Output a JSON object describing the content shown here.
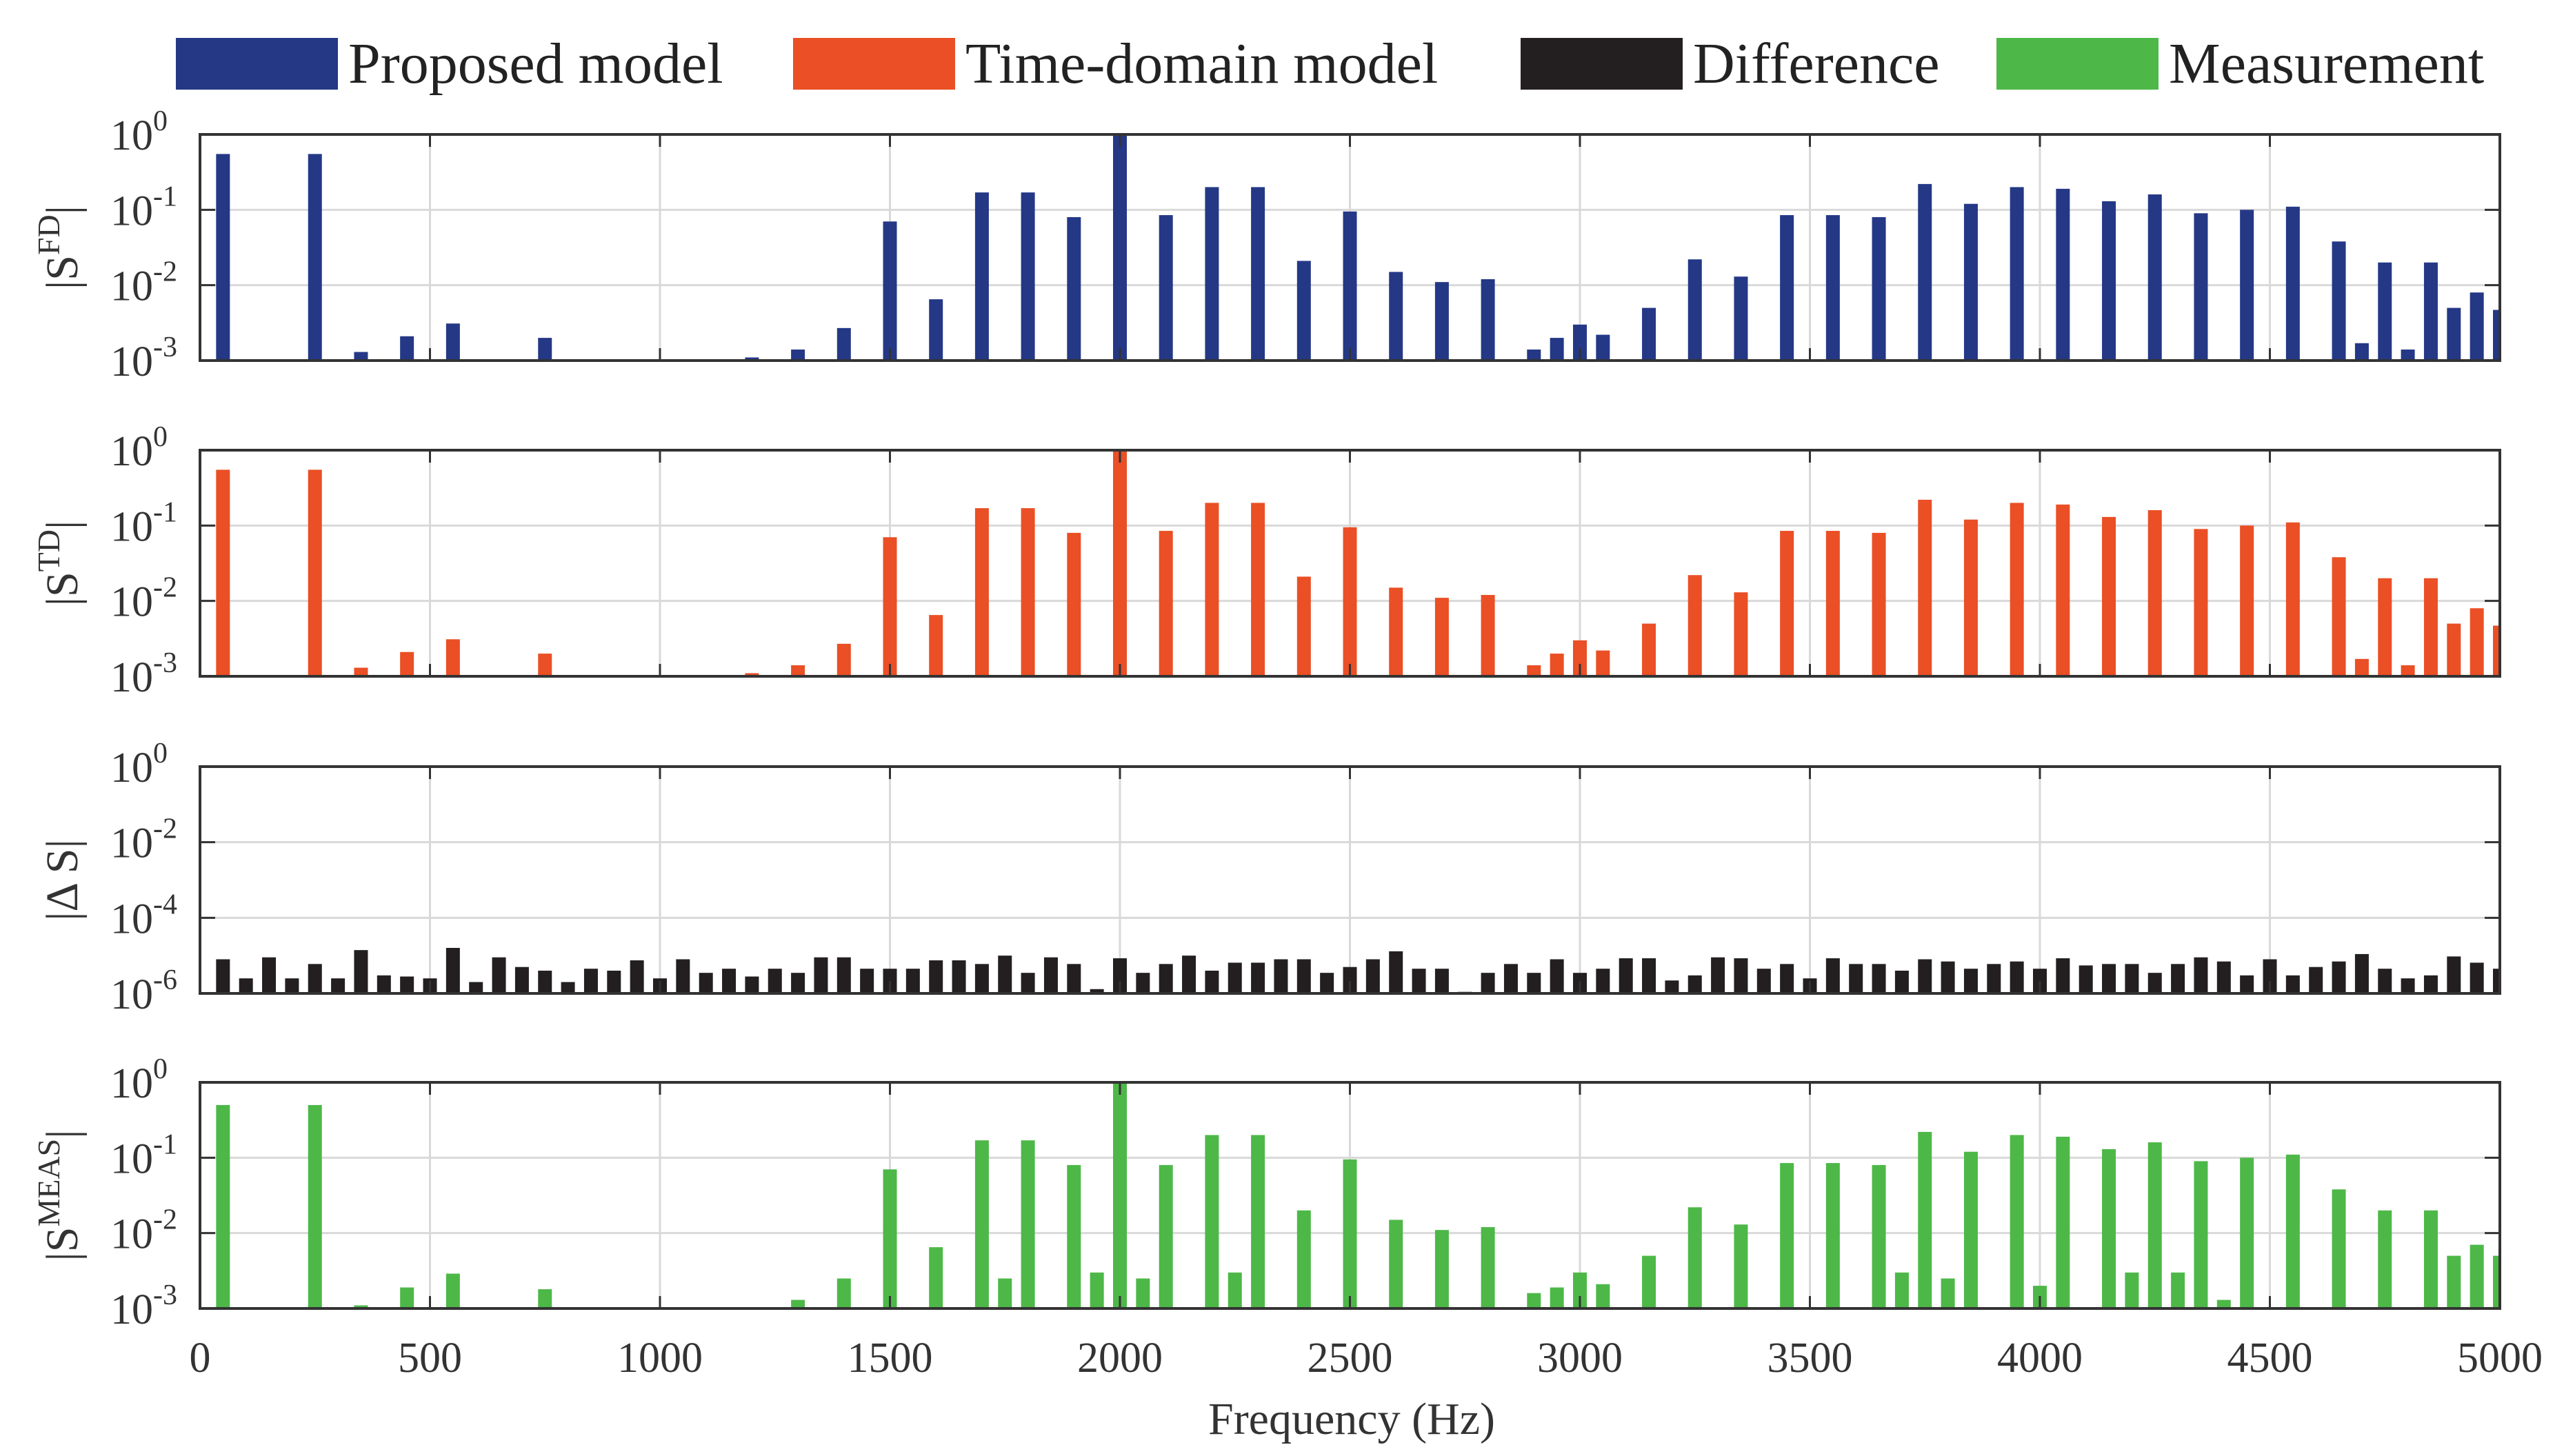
{
  "legend": [
    {
      "label": "Proposed model",
      "color": "#243886"
    },
    {
      "label": "Time-domain model",
      "color": "#EA4F25"
    },
    {
      "label": "Difference",
      "color": "#231F20"
    },
    {
      "label": "Measurement",
      "color": "#4DB848"
    }
  ],
  "xaxis": {
    "label": "Frequency (Hz)",
    "range": [
      0,
      5000
    ],
    "ticks": [
      0,
      500,
      1000,
      1500,
      2000,
      2500,
      3000,
      3500,
      4000,
      4500,
      5000
    ],
    "tick_labels": [
      "0",
      "500",
      "1000",
      "1500",
      "2000",
      "2500",
      "3000",
      "3500",
      "4000",
      "4500",
      "5000"
    ]
  },
  "chart_data": [
    {
      "type": "bar",
      "name": "Proposed model",
      "ylabel_base": "|S",
      "ylabel_sup": "FD",
      "ylabel_end": "|",
      "yscale": "log",
      "ylim_exp": [
        -3,
        0
      ],
      "yticks": [
        {
          "base": "10",
          "exp": "0"
        },
        {
          "base": "10",
          "exp": "-1"
        },
        {
          "base": "10",
          "exp": "-2"
        },
        {
          "base": "10",
          "exp": "-3"
        }
      ],
      "color": "#243886",
      "points": [
        [
          50,
          0.55
        ],
        [
          250,
          0.55
        ],
        [
          350,
          0.0013
        ],
        [
          450,
          0.0021
        ],
        [
          550,
          0.0031
        ],
        [
          750,
          0.002
        ],
        [
          1200,
          0.0011
        ],
        [
          1300,
          0.0014
        ],
        [
          1400,
          0.0027
        ],
        [
          1500,
          0.07
        ],
        [
          1600,
          0.0065
        ],
        [
          1700,
          0.17
        ],
        [
          1800,
          0.17
        ],
        [
          1900,
          0.08
        ],
        [
          2000,
          1.0
        ],
        [
          2100,
          0.085
        ],
        [
          2200,
          0.2
        ],
        [
          2300,
          0.2
        ],
        [
          2400,
          0.021
        ],
        [
          2500,
          0.095
        ],
        [
          2600,
          0.015
        ],
        [
          2700,
          0.011
        ],
        [
          2800,
          0.012
        ],
        [
          2900,
          0.0014
        ],
        [
          2950,
          0.002
        ],
        [
          3000,
          0.003
        ],
        [
          3050,
          0.0022
        ],
        [
          3150,
          0.005
        ],
        [
          3250,
          0.022
        ],
        [
          3350,
          0.013
        ],
        [
          3450,
          0.085
        ],
        [
          3550,
          0.085
        ],
        [
          3650,
          0.08
        ],
        [
          3750,
          0.22
        ],
        [
          3850,
          0.12
        ],
        [
          3950,
          0.2
        ],
        [
          4050,
          0.19
        ],
        [
          4150,
          0.13
        ],
        [
          4250,
          0.16
        ],
        [
          4350,
          0.09
        ],
        [
          4450,
          0.1
        ],
        [
          4550,
          0.11
        ],
        [
          4650,
          0.038
        ],
        [
          4700,
          0.0017
        ],
        [
          4750,
          0.02
        ],
        [
          4800,
          0.0014
        ],
        [
          4850,
          0.02
        ],
        [
          4900,
          0.005
        ],
        [
          4950,
          0.008
        ],
        [
          5000,
          0.0047
        ]
      ]
    },
    {
      "type": "bar",
      "name": "Time-domain model",
      "ylabel_base": "|S",
      "ylabel_sup": "TD",
      "ylabel_end": "|",
      "yscale": "log",
      "ylim_exp": [
        -3,
        0
      ],
      "yticks": [
        {
          "base": "10",
          "exp": "0"
        },
        {
          "base": "10",
          "exp": "-1"
        },
        {
          "base": "10",
          "exp": "-2"
        },
        {
          "base": "10",
          "exp": "-3"
        }
      ],
      "color": "#EA4F25",
      "points": [
        [
          50,
          0.55
        ],
        [
          250,
          0.55
        ],
        [
          350,
          0.0013
        ],
        [
          450,
          0.0021
        ],
        [
          550,
          0.0031
        ],
        [
          750,
          0.002
        ],
        [
          1200,
          0.0011
        ],
        [
          1300,
          0.0014
        ],
        [
          1400,
          0.0027
        ],
        [
          1500,
          0.07
        ],
        [
          1600,
          0.0065
        ],
        [
          1700,
          0.17
        ],
        [
          1800,
          0.17
        ],
        [
          1900,
          0.08
        ],
        [
          2000,
          1.0
        ],
        [
          2100,
          0.085
        ],
        [
          2200,
          0.2
        ],
        [
          2300,
          0.2
        ],
        [
          2400,
          0.021
        ],
        [
          2500,
          0.095
        ],
        [
          2600,
          0.015
        ],
        [
          2700,
          0.011
        ],
        [
          2800,
          0.012
        ],
        [
          2900,
          0.0014
        ],
        [
          2950,
          0.002
        ],
        [
          3000,
          0.003
        ],
        [
          3050,
          0.0022
        ],
        [
          3150,
          0.005
        ],
        [
          3250,
          0.022
        ],
        [
          3350,
          0.013
        ],
        [
          3450,
          0.085
        ],
        [
          3550,
          0.085
        ],
        [
          3650,
          0.08
        ],
        [
          3750,
          0.22
        ],
        [
          3850,
          0.12
        ],
        [
          3950,
          0.2
        ],
        [
          4050,
          0.19
        ],
        [
          4150,
          0.13
        ],
        [
          4250,
          0.16
        ],
        [
          4350,
          0.09
        ],
        [
          4450,
          0.1
        ],
        [
          4550,
          0.11
        ],
        [
          4650,
          0.038
        ],
        [
          4700,
          0.0017
        ],
        [
          4750,
          0.02
        ],
        [
          4800,
          0.0014
        ],
        [
          4850,
          0.02
        ],
        [
          4900,
          0.005
        ],
        [
          4950,
          0.008
        ],
        [
          5000,
          0.0047
        ]
      ]
    },
    {
      "type": "bar",
      "name": "Difference",
      "ylabel_base": "|Δ S|",
      "ylabel_sup": "",
      "ylabel_end": "",
      "yscale": "log",
      "ylim_exp": [
        -6,
        0
      ],
      "yticks": [
        {
          "base": "10",
          "exp": "0"
        },
        {
          "base": "10",
          "exp": "-2"
        },
        {
          "base": "10",
          "exp": "-4"
        },
        {
          "base": "10",
          "exp": "-6"
        }
      ],
      "color": "#231F20",
      "points": [
        [
          50,
          8e-06
        ],
        [
          100,
          2.5e-06
        ],
        [
          150,
          9e-06
        ],
        [
          200,
          2.5e-06
        ],
        [
          250,
          6e-06
        ],
        [
          300,
          2.5e-06
        ],
        [
          350,
          1.4e-05
        ],
        [
          400,
          3e-06
        ],
        [
          450,
          2.8e-06
        ],
        [
          500,
          2.5e-06
        ],
        [
          550,
          1.6e-05
        ],
        [
          600,
          2e-06
        ],
        [
          650,
          9e-06
        ],
        [
          700,
          5e-06
        ],
        [
          750,
          4e-06
        ],
        [
          800,
          2e-06
        ],
        [
          850,
          4.5e-06
        ],
        [
          900,
          4e-06
        ],
        [
          950,
          7.5e-06
        ],
        [
          1000,
          2.5e-06
        ],
        [
          1050,
          8e-06
        ],
        [
          1100,
          3.5e-06
        ],
        [
          1150,
          4.5e-06
        ],
        [
          1200,
          2.8e-06
        ],
        [
          1250,
          4.5e-06
        ],
        [
          1300,
          3.5e-06
        ],
        [
          1350,
          9e-06
        ],
        [
          1400,
          9e-06
        ],
        [
          1450,
          4.5e-06
        ],
        [
          1500,
          4.5e-06
        ],
        [
          1550,
          4.5e-06
        ],
        [
          1600,
          7.5e-06
        ],
        [
          1650,
          7.5e-06
        ],
        [
          1700,
          6e-06
        ],
        [
          1750,
          1e-05
        ],
        [
          1800,
          3.5e-06
        ],
        [
          1850,
          9e-06
        ],
        [
          1900,
          6e-06
        ],
        [
          1950,
          1.3e-06
        ],
        [
          2000,
          8.5e-06
        ],
        [
          2050,
          3.5e-06
        ],
        [
          2100,
          6e-06
        ],
        [
          2150,
          1e-05
        ],
        [
          2200,
          4e-06
        ],
        [
          2250,
          6.5e-06
        ],
        [
          2300,
          6.5e-06
        ],
        [
          2350,
          8e-06
        ],
        [
          2400,
          8e-06
        ],
        [
          2450,
          3.5e-06
        ],
        [
          2500,
          5e-06
        ],
        [
          2550,
          8e-06
        ],
        [
          2600,
          1.3e-05
        ],
        [
          2650,
          4.5e-06
        ],
        [
          2700,
          4.5e-06
        ],
        [
          2750,
          1.1e-06
        ],
        [
          2800,
          3.5e-06
        ],
        [
          2850,
          6e-06
        ],
        [
          2900,
          3.5e-06
        ],
        [
          2950,
          8e-06
        ],
        [
          3000,
          3.5e-06
        ],
        [
          3050,
          4.5e-06
        ],
        [
          3100,
          8.5e-06
        ],
        [
          3150,
          8.5e-06
        ],
        [
          3200,
          2.2e-06
        ],
        [
          3250,
          3e-06
        ],
        [
          3300,
          9e-06
        ],
        [
          3350,
          8.5e-06
        ],
        [
          3400,
          4.5e-06
        ],
        [
          3450,
          6e-06
        ],
        [
          3500,
          2.5e-06
        ],
        [
          3550,
          8.5e-06
        ],
        [
          3600,
          6e-06
        ],
        [
          3650,
          6e-06
        ],
        [
          3700,
          4e-06
        ],
        [
          3750,
          8e-06
        ],
        [
          3800,
          7e-06
        ],
        [
          3850,
          4.5e-06
        ],
        [
          3900,
          6e-06
        ],
        [
          3950,
          7e-06
        ],
        [
          4000,
          4.5e-06
        ],
        [
          4050,
          8.5e-06
        ],
        [
          4100,
          5.5e-06
        ],
        [
          4150,
          6e-06
        ],
        [
          4200,
          6e-06
        ],
        [
          4250,
          3.5e-06
        ],
        [
          4300,
          6e-06
        ],
        [
          4350,
          9e-06
        ],
        [
          4400,
          7e-06
        ],
        [
          4450,
          3e-06
        ],
        [
          4500,
          8e-06
        ],
        [
          4550,
          3e-06
        ],
        [
          4600,
          5e-06
        ],
        [
          4650,
          7e-06
        ],
        [
          4700,
          1.1e-05
        ],
        [
          4750,
          4.5e-06
        ],
        [
          4800,
          2.5e-06
        ],
        [
          4850,
          3e-06
        ],
        [
          4900,
          9.5e-06
        ],
        [
          4950,
          6.5e-06
        ],
        [
          5000,
          4.5e-06
        ]
      ]
    },
    {
      "type": "bar",
      "name": "Measurement",
      "ylabel_base": "|S",
      "ylabel_sup": "MEAS",
      "ylabel_end": "|",
      "yscale": "log",
      "ylim_exp": [
        -3,
        0
      ],
      "yticks": [
        {
          "base": "10",
          "exp": "0"
        },
        {
          "base": "10",
          "exp": "-1"
        },
        {
          "base": "10",
          "exp": "-2"
        },
        {
          "base": "10",
          "exp": "-3"
        }
      ],
      "color": "#4DB848",
      "points": [
        [
          50,
          0.5
        ],
        [
          250,
          0.5
        ],
        [
          350,
          0.0011
        ],
        [
          450,
          0.0019
        ],
        [
          550,
          0.0029
        ],
        [
          750,
          0.0018
        ],
        [
          1300,
          0.0013
        ],
        [
          1400,
          0.0025
        ],
        [
          1500,
          0.07
        ],
        [
          1600,
          0.0065
        ],
        [
          1700,
          0.17
        ],
        [
          1750,
          0.0025
        ],
        [
          1800,
          0.17
        ],
        [
          1900,
          0.08
        ],
        [
          1950,
          0.003
        ],
        [
          2000,
          1.0
        ],
        [
          2050,
          0.0025
        ],
        [
          2100,
          0.08
        ],
        [
          2200,
          0.2
        ],
        [
          2250,
          0.003
        ],
        [
          2300,
          0.2
        ],
        [
          2400,
          0.02
        ],
        [
          2500,
          0.095
        ],
        [
          2600,
          0.015
        ],
        [
          2700,
          0.011
        ],
        [
          2800,
          0.012
        ],
        [
          2900,
          0.0016
        ],
        [
          2950,
          0.0019
        ],
        [
          3000,
          0.003
        ],
        [
          3050,
          0.0021
        ],
        [
          3150,
          0.005
        ],
        [
          3250,
          0.022
        ],
        [
          3350,
          0.013
        ],
        [
          3450,
          0.085
        ],
        [
          3550,
          0.085
        ],
        [
          3650,
          0.08
        ],
        [
          3700,
          0.003
        ],
        [
          3750,
          0.22
        ],
        [
          3800,
          0.0025
        ],
        [
          3850,
          0.12
        ],
        [
          3950,
          0.2
        ],
        [
          4000,
          0.002
        ],
        [
          4050,
          0.19
        ],
        [
          4150,
          0.13
        ],
        [
          4200,
          0.003
        ],
        [
          4250,
          0.16
        ],
        [
          4300,
          0.003
        ],
        [
          4350,
          0.09
        ],
        [
          4400,
          0.0013
        ],
        [
          4450,
          0.1
        ],
        [
          4550,
          0.11
        ],
        [
          4650,
          0.038
        ],
        [
          4750,
          0.02
        ],
        [
          4850,
          0.02
        ],
        [
          4900,
          0.005
        ],
        [
          4950,
          0.007
        ],
        [
          5000,
          0.005
        ]
      ]
    }
  ]
}
